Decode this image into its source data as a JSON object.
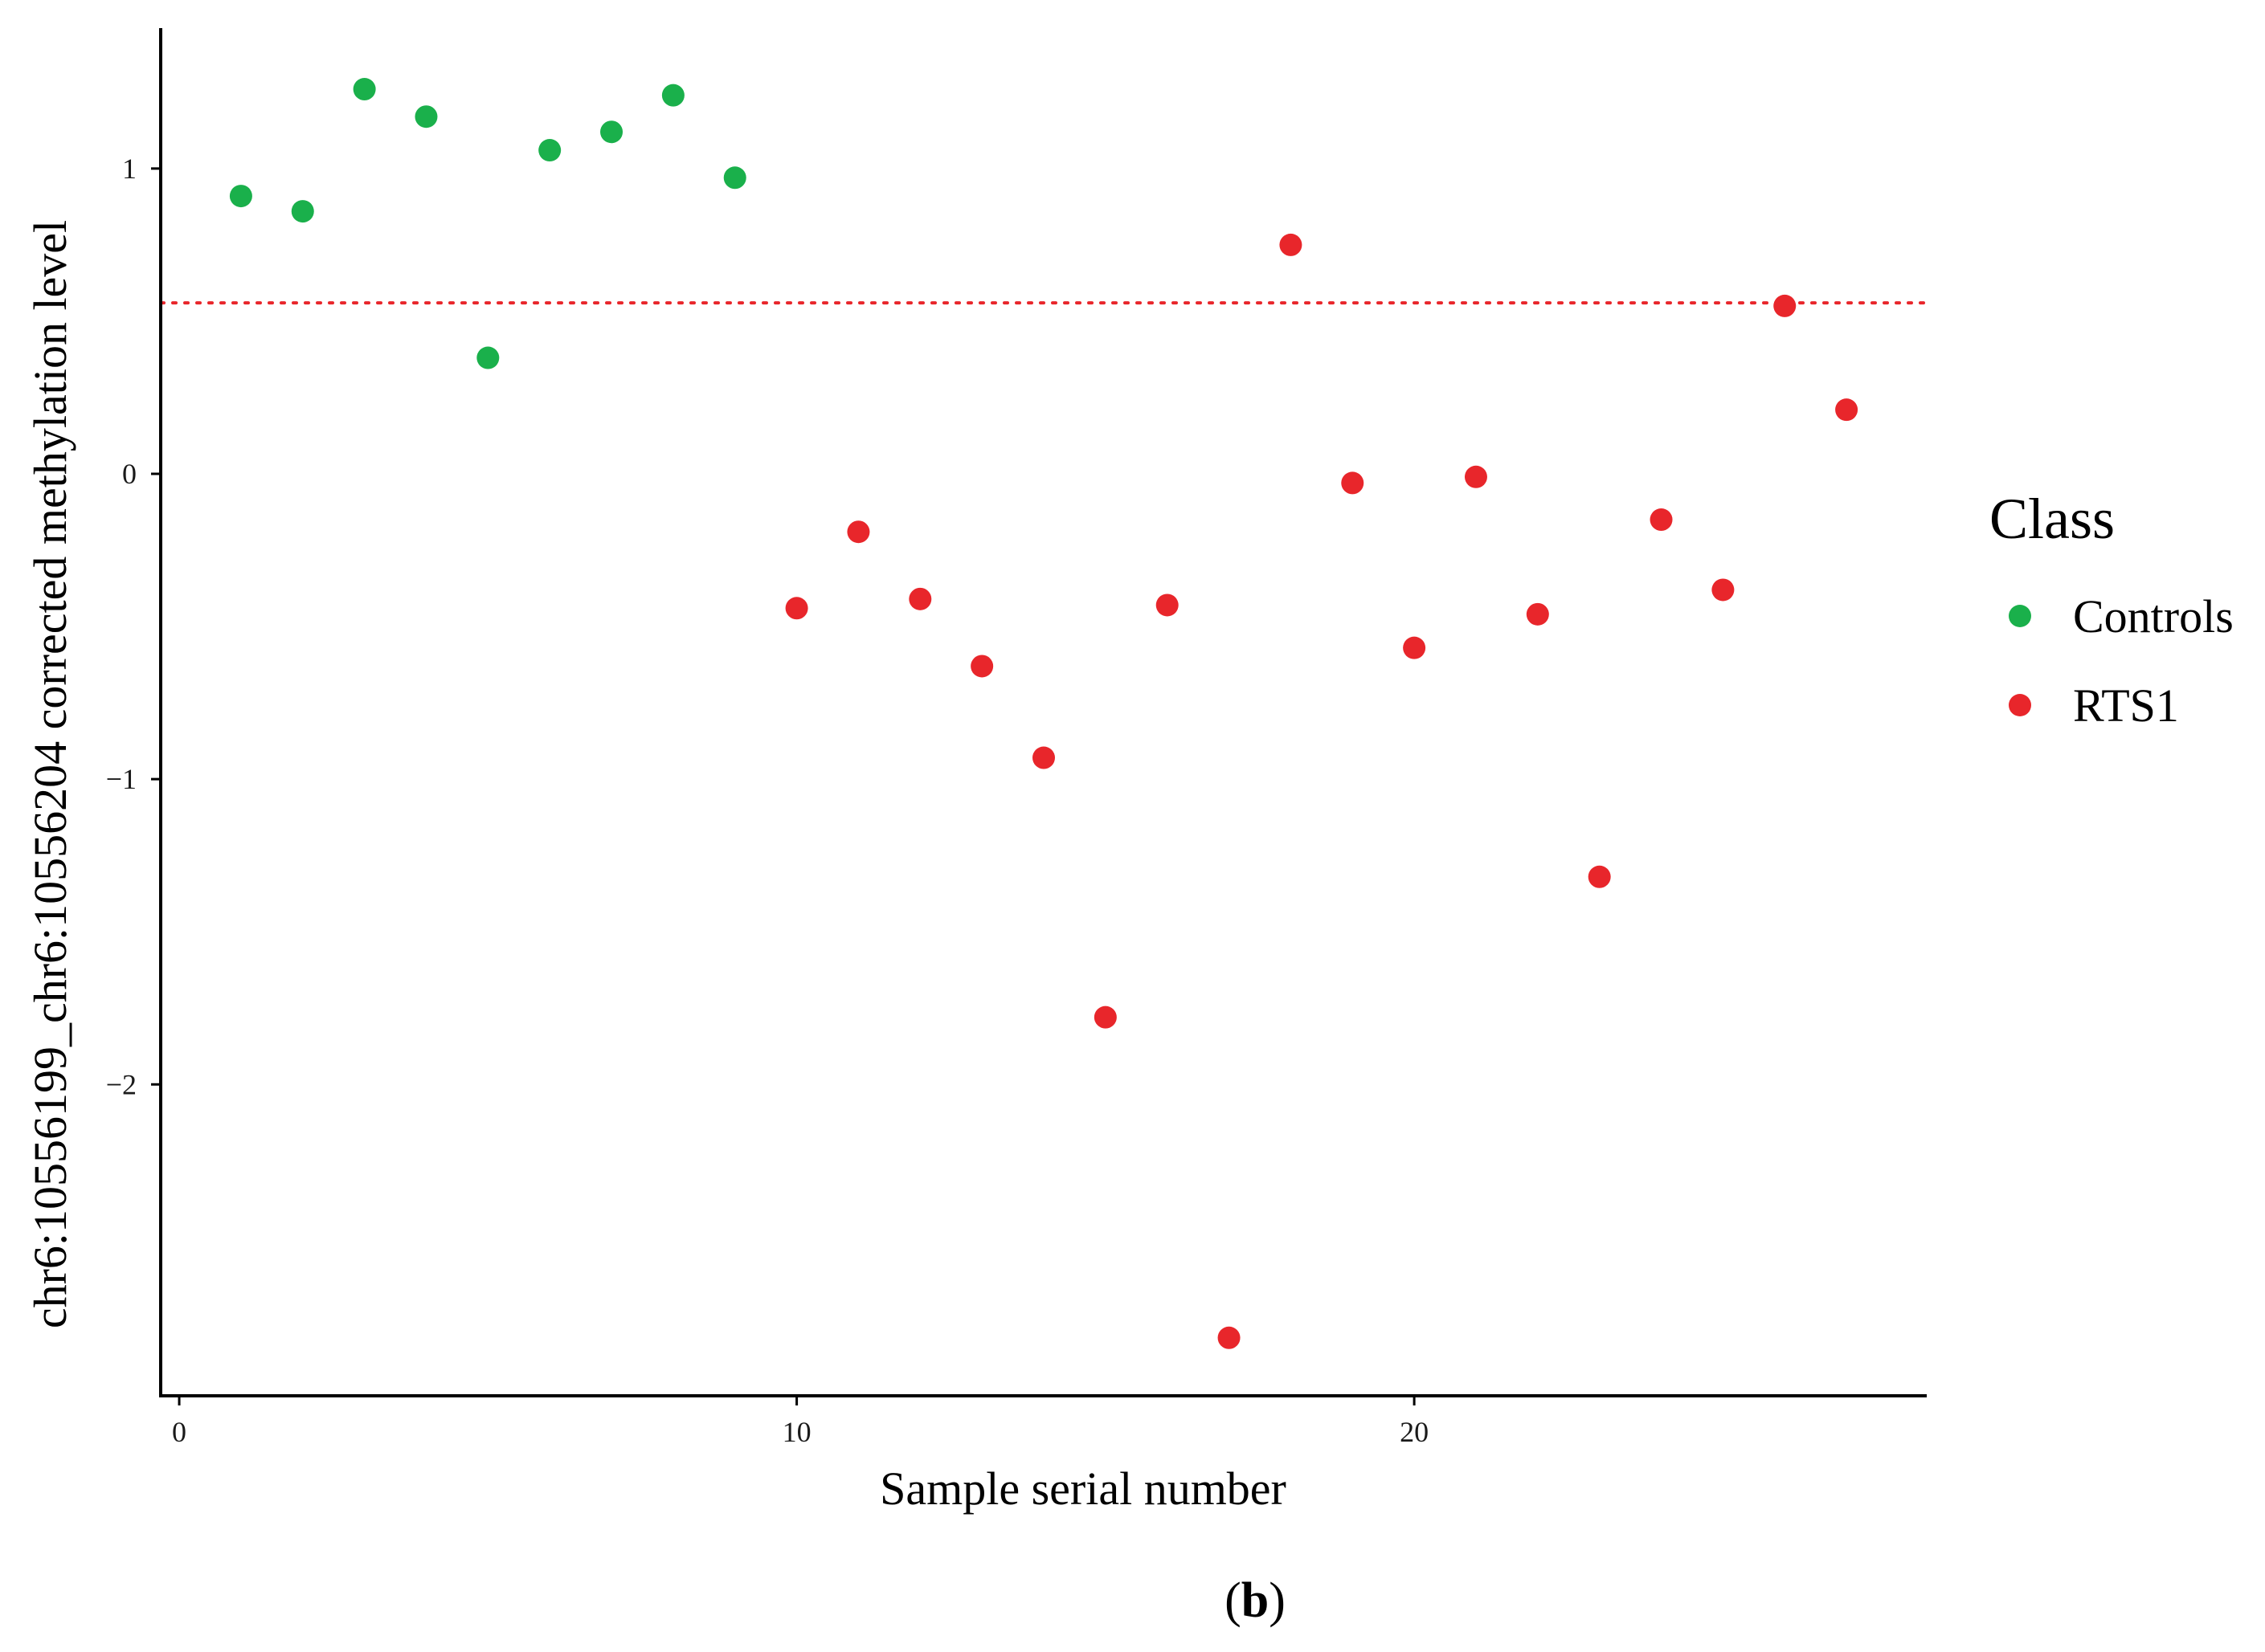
{
  "chart_data": {
    "type": "scatter",
    "xlabel": "Sample serial number",
    "ylabel": "chr6:10556199_chr6:10556204 corrected methylation level",
    "xlim": [
      -0.3,
      28.3
    ],
    "ylim": [
      -3.02,
      1.46
    ],
    "x_ticks": [
      {
        "value": 0,
        "label": "0"
      },
      {
        "value": 10,
        "label": "10"
      },
      {
        "value": 20,
        "label": "20"
      }
    ],
    "y_ticks": [
      {
        "value": 1,
        "label": "1"
      },
      {
        "value": 0,
        "label": "0"
      },
      {
        "value": -1,
        "label": "−1"
      },
      {
        "value": -2,
        "label": "−2"
      }
    ],
    "threshold": {
      "y": 0.56,
      "color": "#e8262b",
      "style": "dotted"
    },
    "legend": {
      "title": "Class",
      "position": "right"
    },
    "series": [
      {
        "name": "Controls",
        "color": "#1ab04b",
        "points": [
          {
            "x": 1,
            "y": 0.91
          },
          {
            "x": 2,
            "y": 0.86
          },
          {
            "x": 3,
            "y": 1.26
          },
          {
            "x": 4,
            "y": 1.17
          },
          {
            "x": 5,
            "y": 0.38
          },
          {
            "x": 6,
            "y": 1.06
          },
          {
            "x": 7,
            "y": 1.12
          },
          {
            "x": 8,
            "y": 1.24
          },
          {
            "x": 9,
            "y": 0.97
          }
        ]
      },
      {
        "name": "RTS1",
        "color": "#e8262b",
        "points": [
          {
            "x": 10,
            "y": -0.44
          },
          {
            "x": 11,
            "y": -0.19
          },
          {
            "x": 12,
            "y": -0.41
          },
          {
            "x": 13,
            "y": -0.63
          },
          {
            "x": 14,
            "y": -0.93
          },
          {
            "x": 15,
            "y": -1.78
          },
          {
            "x": 16,
            "y": -0.43
          },
          {
            "x": 17,
            "y": -2.83
          },
          {
            "x": 18,
            "y": 0.75
          },
          {
            "x": 19,
            "y": -0.03
          },
          {
            "x": 20,
            "y": -0.57
          },
          {
            "x": 21,
            "y": -0.01
          },
          {
            "x": 22,
            "y": -0.46
          },
          {
            "x": 23,
            "y": -1.32
          },
          {
            "x": 24,
            "y": -0.15
          },
          {
            "x": 25,
            "y": -0.38
          },
          {
            "x": 26,
            "y": 0.55
          },
          {
            "x": 27,
            "y": 0.21
          }
        ]
      }
    ]
  },
  "caption": {
    "open": "(",
    "letter": "b",
    "close": ")"
  }
}
